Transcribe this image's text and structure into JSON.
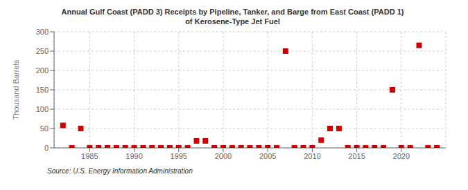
{
  "chart_data": {
    "type": "scatter",
    "title": "Annual Gulf Coast (PADD 3) Receipts by Pipeline, Tanker, and Barge from East Coast (PADD 1)\nof Kerosene-Type Jet Fuel",
    "ylabel": "Thousand Barrels",
    "annotation": "Source: U.S. Energy Information Administration",
    "x": [
      1982,
      1983,
      1984,
      1985,
      1986,
      1987,
      1988,
      1989,
      1990,
      1991,
      1992,
      1993,
      1994,
      1995,
      1996,
      1997,
      1998,
      1999,
      2000,
      2001,
      2002,
      2003,
      2004,
      2005,
      2006,
      2007,
      2008,
      2009,
      2010,
      2011,
      2012,
      2013,
      2014,
      2015,
      2016,
      2017,
      2018,
      2019,
      2020,
      2021,
      2022,
      2023,
      2024
    ],
    "values": [
      58,
      0,
      50,
      0,
      0,
      0,
      0,
      0,
      0,
      0,
      0,
      0,
      0,
      0,
      0,
      18,
      18,
      0,
      0,
      0,
      0,
      0,
      0,
      0,
      0,
      250,
      0,
      0,
      0,
      20,
      50,
      50,
      0,
      0,
      0,
      0,
      0,
      150,
      0,
      0,
      265,
      0,
      0
    ],
    "color": "#cc0000",
    "marker": "square",
    "xlim": [
      1981,
      2025
    ],
    "ylim": [
      0,
      300
    ],
    "xticks": [
      1985,
      1990,
      1995,
      2000,
      2005,
      2010,
      2015,
      2020
    ],
    "yticks": [
      0,
      50,
      100,
      150,
      200,
      250,
      300
    ],
    "grid": true
  }
}
